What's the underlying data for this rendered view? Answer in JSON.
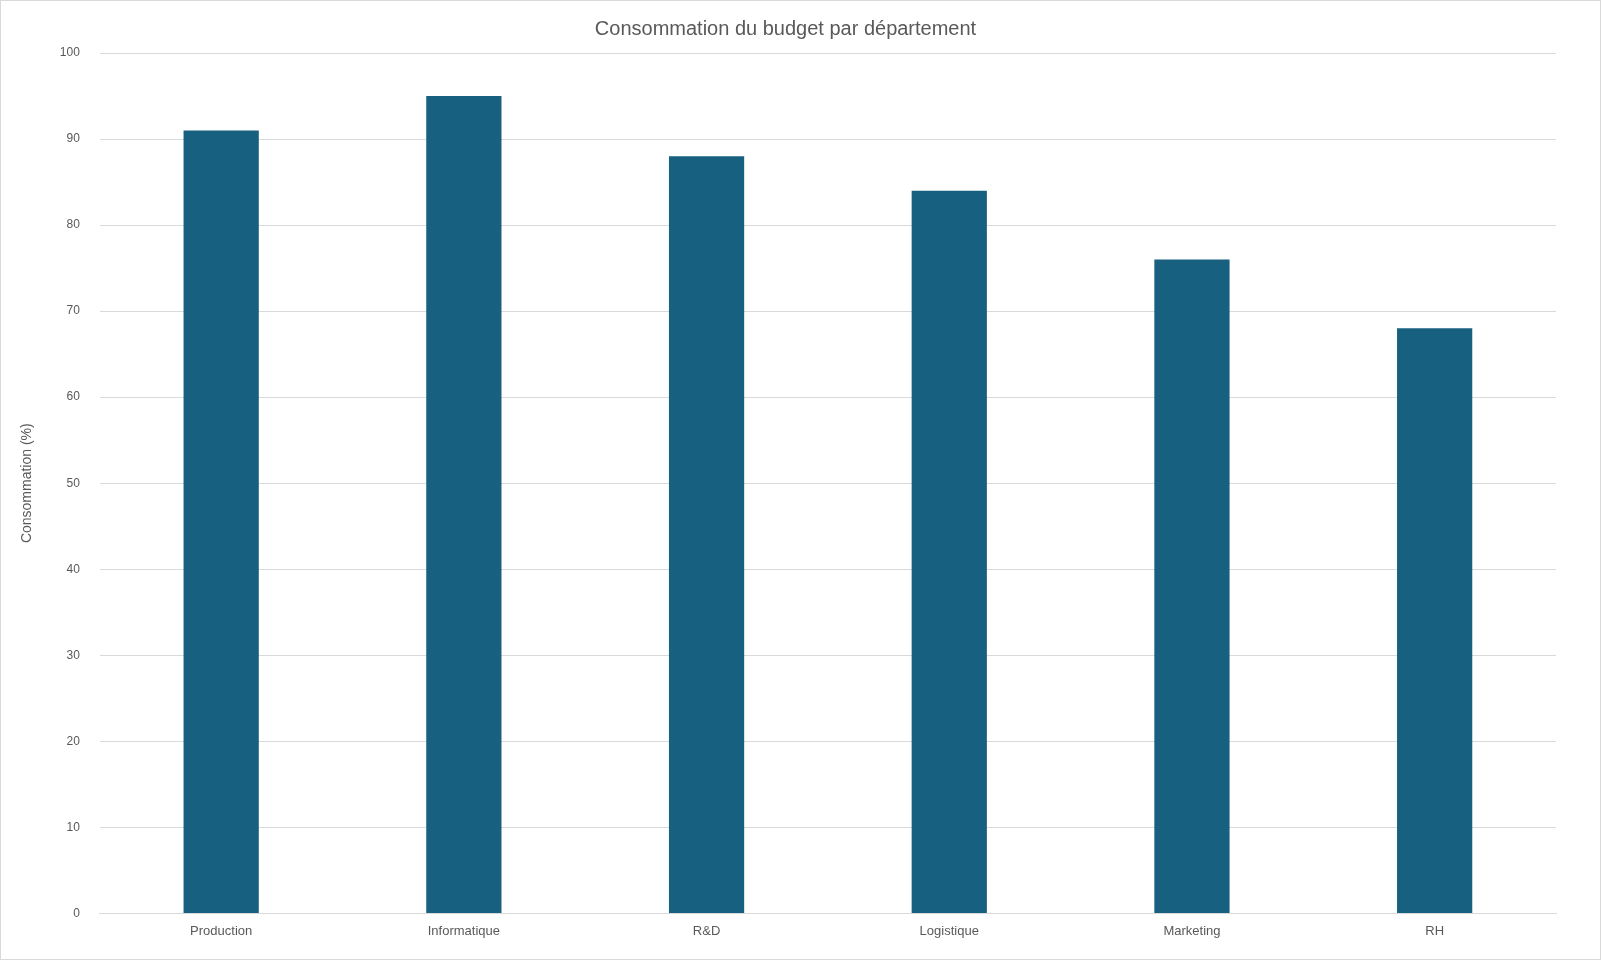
{
  "chart_data": {
    "type": "bar",
    "title": "Consommation du budget par département",
    "ylabel": "Consommation (%)",
    "categories": [
      "Production",
      "Informatique",
      "R&D",
      "Logistique",
      "Marketing",
      "RH"
    ],
    "values": [
      91,
      95,
      88,
      84,
      76,
      68
    ],
    "color": "#17607f",
    "ylim": [
      0,
      100
    ],
    "yticks": [
      0,
      10,
      20,
      30,
      40,
      50,
      60,
      70,
      80,
      90,
      100
    ],
    "grid": "y",
    "legend": false
  }
}
